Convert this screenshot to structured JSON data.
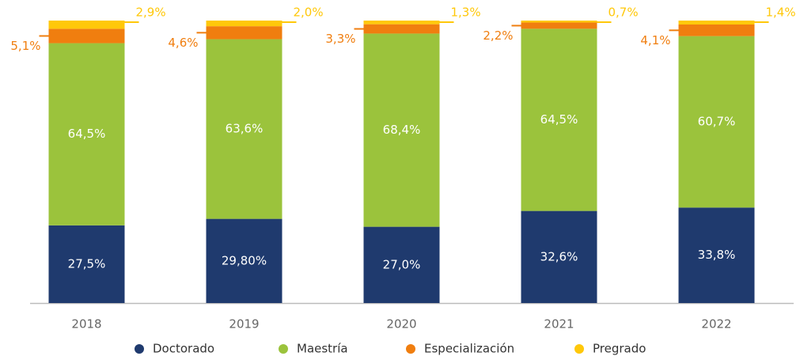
{
  "chart_data": {
    "type": "stacked_bar",
    "categories": [
      "2018",
      "2019",
      "2020",
      "2021",
      "2022"
    ],
    "series": [
      {
        "name": "Doctorado",
        "color": "#1f3a6e",
        "values": [
          27.5,
          29.8,
          27.0,
          32.6,
          33.8
        ],
        "value_labels": [
          "27,5%",
          "29,80%",
          "27,0%",
          "32,6%",
          "33,8%"
        ]
      },
      {
        "name": "Maestría",
        "color": "#9bc33c",
        "values": [
          64.5,
          63.6,
          68.4,
          64.5,
          60.7
        ],
        "value_labels": [
          "64,5%",
          "63,6%",
          "68,4%",
          "64,5%",
          "60,7%"
        ]
      },
      {
        "name": "Especialización",
        "color": "#f07e0f",
        "values": [
          5.1,
          4.6,
          3.3,
          2.2,
          4.1
        ],
        "value_labels": [
          "5,1%",
          "4,6%",
          "3,3%",
          "2,2%",
          "4,1%"
        ]
      },
      {
        "name": "Pregrado",
        "color": "#ffc80a",
        "values": [
          2.9,
          2.0,
          1.3,
          0.7,
          1.4
        ],
        "value_labels": [
          "2,9%",
          "2,0%",
          "1,3%",
          "0,7%",
          "1,4%"
        ]
      }
    ]
  }
}
